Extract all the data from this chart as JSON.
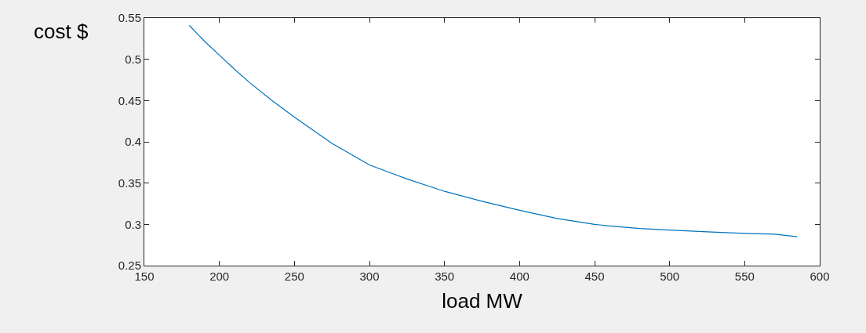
{
  "chart_data": {
    "type": "line",
    "xlabel": "load MW",
    "ylabel": "cost $",
    "x": [
      180,
      190,
      200,
      210,
      220,
      235,
      250,
      275,
      300,
      325,
      350,
      375,
      400,
      425,
      450,
      460,
      480,
      500,
      525,
      550,
      570,
      585
    ],
    "series": [
      {
        "color": "#0072bd",
        "values": [
          0.541,
          0.522,
          0.505,
          0.488,
          0.472,
          0.45,
          0.43,
          0.398,
          0.372,
          0.355,
          0.34,
          0.328,
          0.317,
          0.307,
          0.3,
          0.298,
          0.295,
          0.293,
          0.291,
          0.289,
          0.288,
          0.285
        ]
      }
    ],
    "xlim": [
      150,
      600
    ],
    "xticks": [
      150,
      200,
      250,
      300,
      350,
      400,
      450,
      500,
      550,
      600
    ],
    "ylim": [
      0.25,
      0.55
    ],
    "yticks": [
      0.25,
      0.3,
      0.35,
      0.4,
      0.45,
      0.5,
      0.55
    ],
    "grid": false,
    "marker": "none",
    "line_style": "solid"
  }
}
